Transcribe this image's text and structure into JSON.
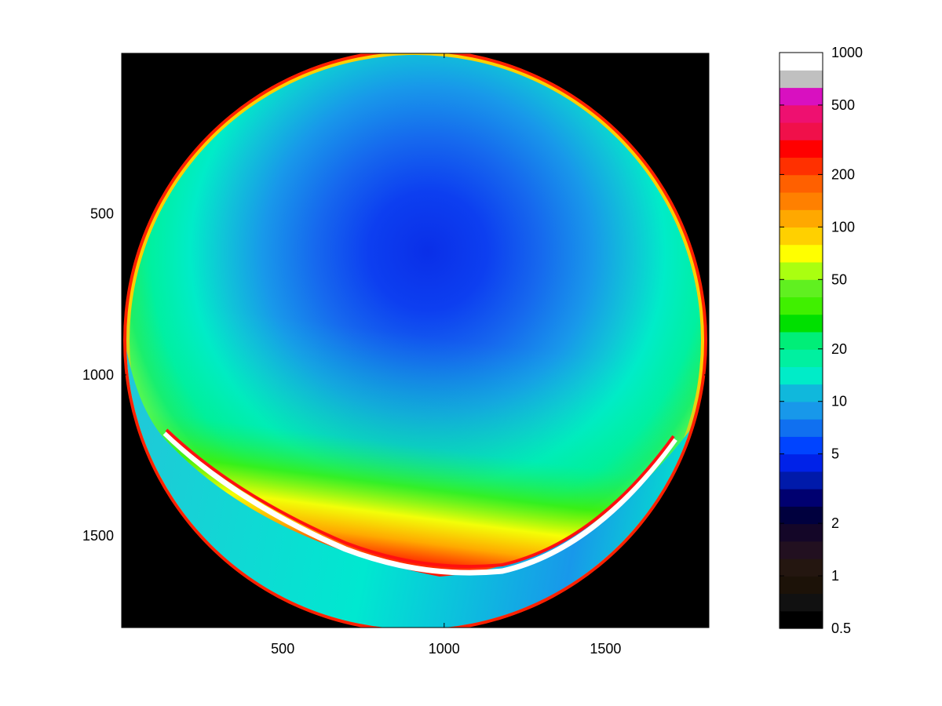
{
  "chart_data": [
    {
      "type": "heatmap",
      "title": "",
      "xlabel": "",
      "ylabel": "",
      "xlim": [
        1,
        1820
      ],
      "ylim": [
        1,
        1785
      ],
      "y_direction": "reversed",
      "x_ticks": [
        500,
        1000,
        1500
      ],
      "y_ticks": [
        500,
        1000,
        1500
      ],
      "x_tick_labels": [
        "500",
        "1000",
        "1500"
      ],
      "y_tick_labels": [
        "500",
        "1000",
        "1500"
      ],
      "background_color": "#000000",
      "grid": false,
      "content": "circular all-sky luminance map; lowest values (~4-6) near the upper center, rising toward the rim; bright band (100-1000) along the lower-left horizon, lower ring band 10-20"
    },
    {
      "type": "colorbar",
      "scale": "log",
      "range": [
        0.5,
        1000
      ],
      "tick_values": [
        0.5,
        1,
        2,
        5,
        10,
        20,
        50,
        100,
        200,
        500,
        1000
      ],
      "tick_labels": [
        "0.5",
        "1",
        "2",
        "5",
        "10",
        "20",
        "50",
        "100",
        "200",
        "500",
        "1000"
      ],
      "colors": [
        "#000000",
        "#111111",
        "#1c1208",
        "#241610",
        "#221020",
        "#140628",
        "#00003e",
        "#000070",
        "#001aaa",
        "#0022e8",
        "#0044ff",
        "#1070f0",
        "#1898ea",
        "#10b8dc",
        "#00ecc8",
        "#00f0a0",
        "#00ee78",
        "#00e000",
        "#40f000",
        "#60f020",
        "#aaff10",
        "#ffff00",
        "#ffd000",
        "#ffa800",
        "#ff8000",
        "#ff6000",
        "#ff3000",
        "#ff0000",
        "#f0104a",
        "#ee1070",
        "#d810c0",
        "#c0c0c0",
        "#ffffff"
      ]
    }
  ]
}
